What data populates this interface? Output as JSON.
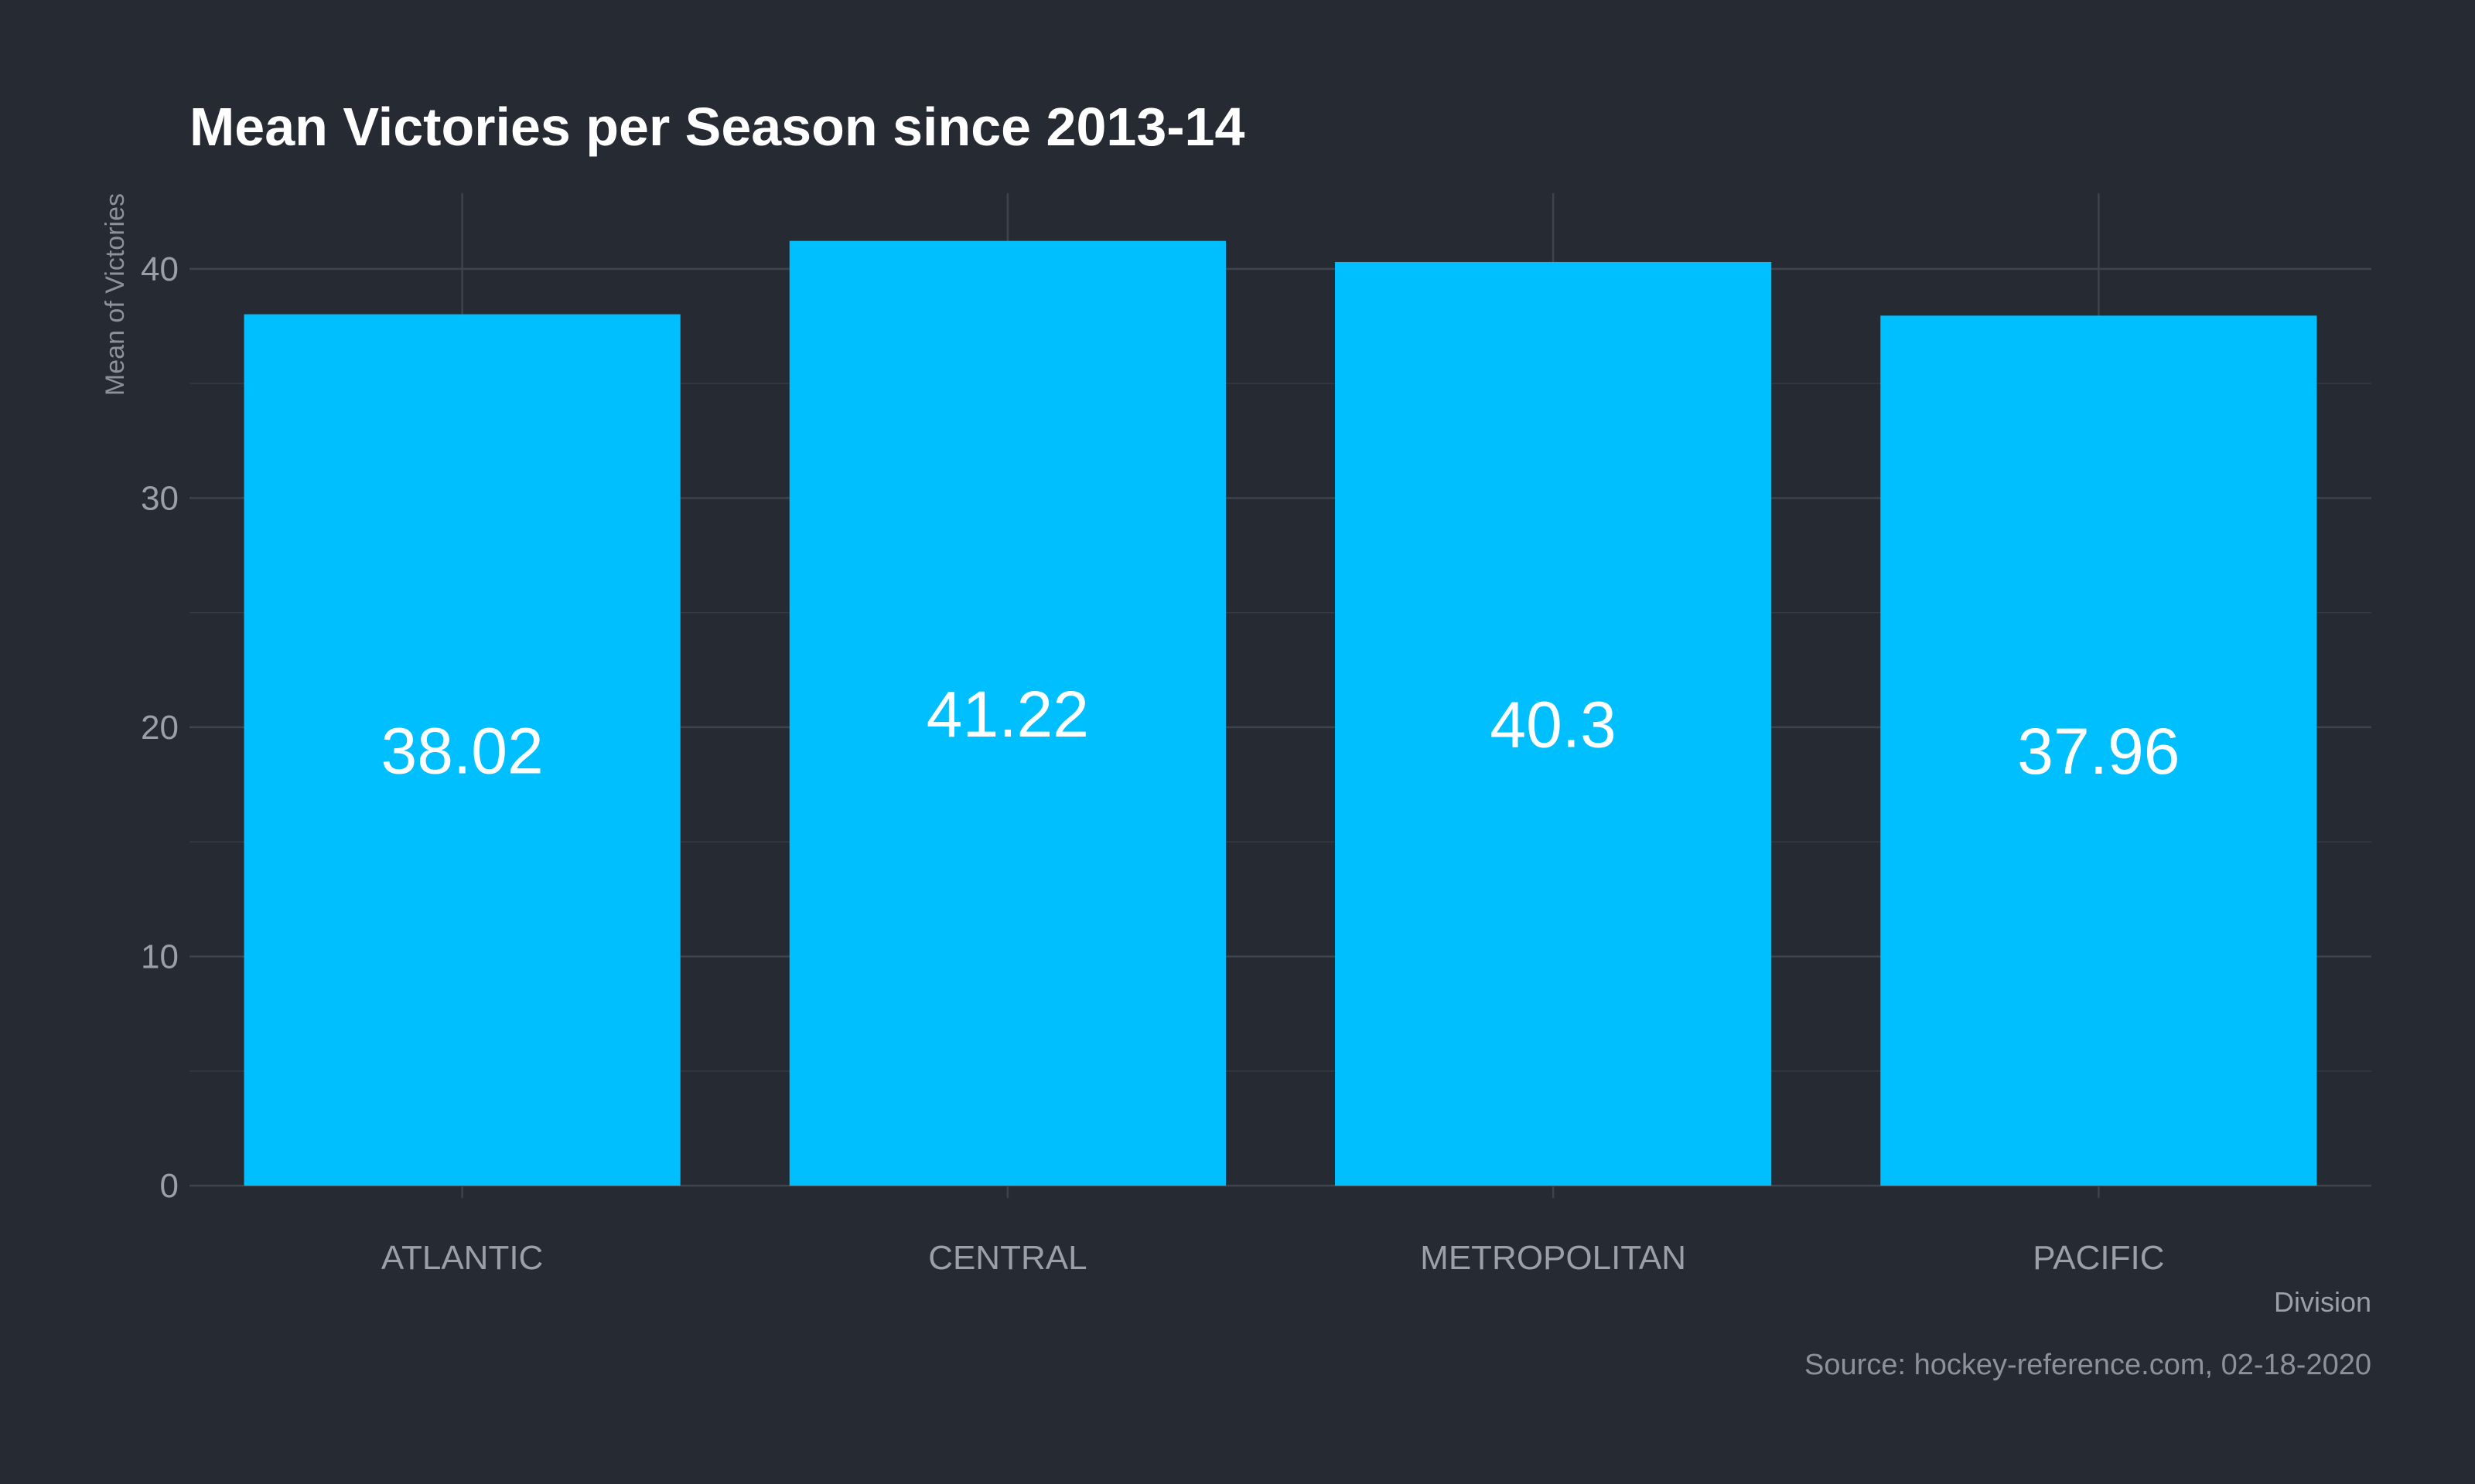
{
  "colors": {
    "background": "#252a33",
    "bar": "#00bfff",
    "title": "#ffffff",
    "data_label": "#ffffff",
    "axis_text": "#9aa0a8",
    "grid": "#3e434c"
  },
  "caption": "Source: hockey-reference.com, 02-18-2020",
  "chart_data": {
    "type": "bar",
    "title": "Mean Victories per Season since 2013-14",
    "xlabel": "Division",
    "ylabel": "Mean of Victories",
    "categories": [
      "ATLANTIC",
      "CENTRAL",
      "METROPOLITAN",
      "PACIFIC"
    ],
    "values": [
      38.02,
      41.22,
      40.3,
      37.96
    ],
    "data_labels": [
      "38.02",
      "41.22",
      "40.3",
      "37.96"
    ],
    "yticks": [
      0,
      10,
      20,
      30,
      40
    ],
    "ylim": [
      0,
      43.3
    ],
    "grid": true,
    "legend": "none"
  }
}
